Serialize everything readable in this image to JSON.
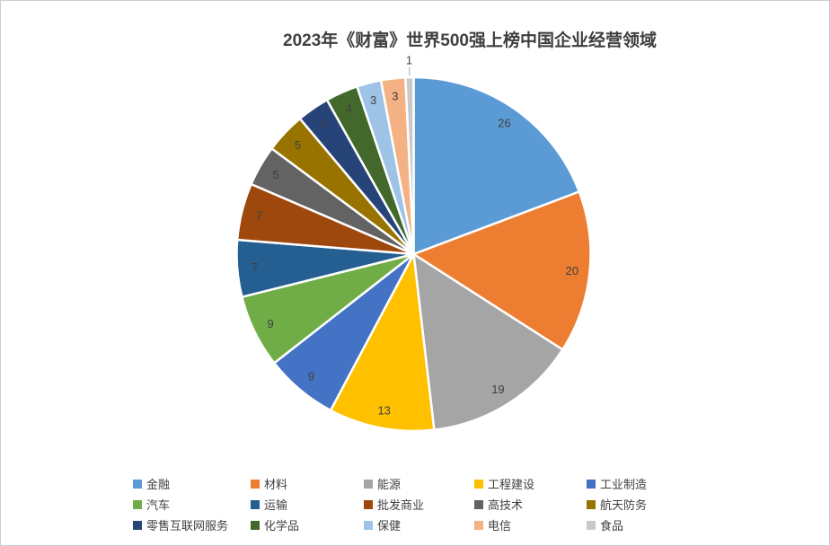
{
  "chart_data": {
    "type": "pie",
    "title": "2023年《财富》世界500强上榜中国企业经营领域",
    "categories": [
      "金融",
      "材料",
      "能源",
      "工程建设",
      "工业制造",
      "汽车",
      "运输",
      "批发商业",
      "高技术",
      "航天防务",
      "零售互联网服务",
      "化学品",
      "保健",
      "电信",
      "食品"
    ],
    "values": [
      26,
      20,
      19,
      13,
      9,
      9,
      7,
      7,
      5,
      5,
      4,
      4,
      3,
      3,
      1
    ],
    "colors": [
      "#5B9BD5",
      "#ED7D31",
      "#A5A5A5",
      "#FFC000",
      "#4472C4",
      "#70AD47",
      "#255E91",
      "#9E480E",
      "#636363",
      "#997300",
      "#264478",
      "#43682B",
      "#9DC3E6",
      "#F4B183",
      "#C9C9C9"
    ],
    "start_angle_deg": 0,
    "direction": "clockwise",
    "data_labels": "values",
    "label_color": "#404040",
    "slice_border_color": "#FFFFFF",
    "leader_line_color": "#A6A6A6",
    "legend_position": "bottom",
    "legend_rows": 3,
    "legend_columns": 5
  }
}
